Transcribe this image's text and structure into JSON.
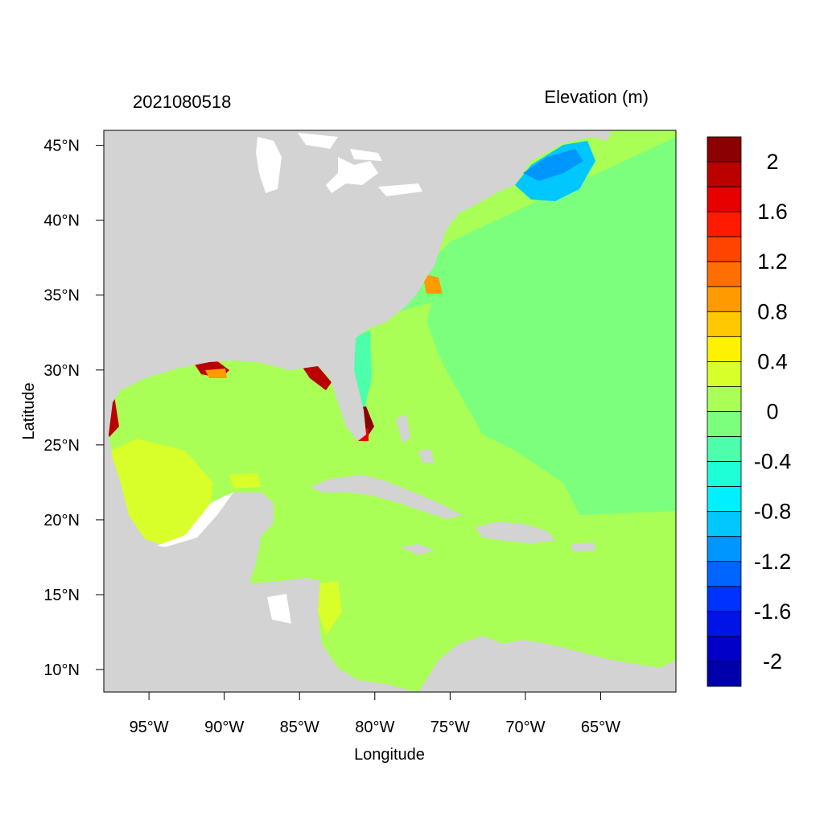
{
  "title_left": "2021080518",
  "title_right": "Elevation (m)",
  "x_axis_label": "Longitude",
  "y_axis_label": "Latitude",
  "x_ticks": [
    "95°W",
    "90°W",
    "85°W",
    "80°W",
    "75°W",
    "70°W",
    "65°W"
  ],
  "x_tick_values": [
    -95,
    -90,
    -85,
    -80,
    -75,
    -70,
    -65
  ],
  "y_ticks": [
    "45°N",
    "40°N",
    "35°N",
    "30°N",
    "25°N",
    "20°N",
    "15°N",
    "10°N"
  ],
  "y_tick_values": [
    45,
    40,
    35,
    30,
    25,
    20,
    15,
    10
  ],
  "extent": {
    "lon_min": -98,
    "lon_max": -60,
    "lat_min": 8.5,
    "lat_max": 46
  },
  "colorbar": {
    "labels": [
      "2",
      "1.6",
      "1.2",
      "0.8",
      "0.4",
      "0",
      "-0.4",
      "-0.8",
      "-1.2",
      "-1.6",
      "-2"
    ],
    "label_values": [
      2,
      1.6,
      1.2,
      0.8,
      0.4,
      0,
      -0.4,
      -0.8,
      -1.2,
      -1.6,
      -2
    ],
    "colors": [
      "#8b0000",
      "#bb0000",
      "#e60000",
      "#ff1a00",
      "#ff4400",
      "#ff6e00",
      "#ff9a00",
      "#ffc800",
      "#fff200",
      "#d8ff2a",
      "#a9ff56",
      "#7cff7c",
      "#4dffaa",
      "#1effd8",
      "#00f0ff",
      "#00c8ff",
      "#0096ff",
      "#0064ff",
      "#0032ff",
      "#0014e6",
      "#0000c8",
      "#0000aa"
    ]
  },
  "colors": {
    "land": "#d3d3d3",
    "water_bg": "#a9ff56",
    "lakes": "#ffffff"
  }
}
